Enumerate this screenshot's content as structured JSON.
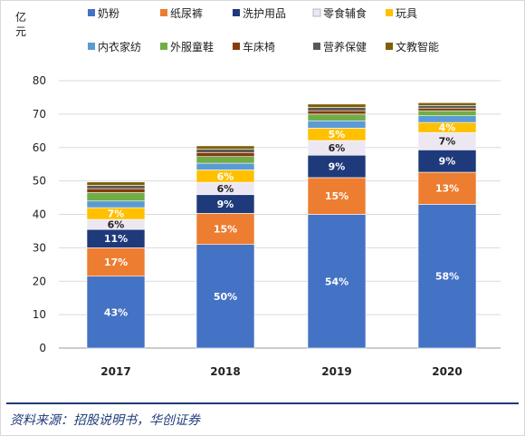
{
  "chart_data": {
    "type": "bar",
    "stacked": true,
    "unit": "亿元",
    "categories": [
      "2017",
      "2018",
      "2019",
      "2020"
    ],
    "ylim": [
      0,
      80
    ],
    "yticks": [
      0,
      10,
      20,
      30,
      40,
      50,
      60,
      70,
      80
    ],
    "grid": true,
    "legend_position": "top",
    "series": [
      {
        "name": "奶粉",
        "color": "#4472c4",
        "values": [
          21.5,
          31,
          40,
          43
        ],
        "labels": [
          "43%",
          "50%",
          "54%",
          "58%"
        ],
        "label_color": "#ffffff"
      },
      {
        "name": "纸尿裤",
        "color": "#ed7d31",
        "values": [
          8.5,
          9.3,
          11,
          9.6
        ],
        "labels": [
          "17%",
          "15%",
          "15%",
          "13%"
        ],
        "label_color": "#ffffff"
      },
      {
        "name": "洗护用品",
        "color": "#1f3a7a",
        "values": [
          5.5,
          5.6,
          6.7,
          6.7
        ],
        "labels": [
          "11%",
          "9%",
          "9%",
          "9%"
        ],
        "label_color": "#ffffff"
      },
      {
        "name": "零食辅食",
        "color": "#ede7f2",
        "values": [
          3,
          3.7,
          4.4,
          5.2
        ],
        "labels": [
          "6%",
          "6%",
          "6%",
          "7%"
        ],
        "label_color": "#222222"
      },
      {
        "name": "玩具",
        "color": "#ffc000",
        "values": [
          3.5,
          3.7,
          3.7,
          3
        ],
        "labels": [
          "7%",
          "6%",
          "5%",
          "4%"
        ],
        "label_color": "#ffffff"
      },
      {
        "name": "内衣家纺",
        "color": "#5b9bd5",
        "values": [
          2,
          2,
          2.2,
          2
        ],
        "labels": [
          "",
          "",
          "",
          ""
        ],
        "label_color": "#ffffff"
      },
      {
        "name": "外服童鞋",
        "color": "#70ad47",
        "values": [
          2.5,
          2,
          2,
          1.5
        ],
        "labels": [
          "",
          "",
          "",
          ""
        ],
        "label_color": "#ffffff"
      },
      {
        "name": "车床椅",
        "color": "#843c0c",
        "values": [
          1.2,
          1.2,
          1,
          0.8
        ],
        "labels": [
          "",
          "",
          "",
          ""
        ],
        "label_color": "#ffffff"
      },
      {
        "name": "营养保健",
        "color": "#595959",
        "values": [
          1,
          1,
          1,
          0.8
        ],
        "labels": [
          "",
          "",
          "",
          ""
        ],
        "label_color": "#ffffff"
      },
      {
        "name": "文教智能",
        "color": "#7f6000",
        "values": [
          1,
          1,
          1,
          0.8
        ],
        "labels": [
          "",
          "",
          "",
          ""
        ],
        "label_color": "#ffffff"
      }
    ]
  },
  "source": "资料来源：招股说明书，华创证券"
}
